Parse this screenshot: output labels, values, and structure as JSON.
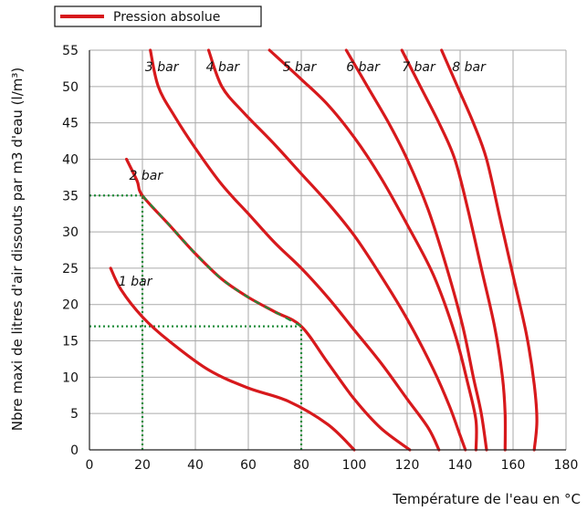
{
  "chart_data": {
    "type": "line",
    "legend": {
      "label": "Pression absolue",
      "placement": "top-left"
    },
    "xlabel": "Température de l'eau en °C",
    "ylabel": "Nbre maxi de litres d'air dissouts par m3 d'eau (l/m³)",
    "xlim": [
      0,
      180
    ],
    "ylim": [
      0,
      55
    ],
    "x_ticks": [
      0,
      20,
      40,
      60,
      80,
      100,
      120,
      140,
      160,
      180
    ],
    "y_ticks": [
      0,
      5,
      10,
      15,
      20,
      25,
      30,
      35,
      40,
      45,
      50,
      55
    ],
    "grid": true,
    "colors": {
      "curve": "#d7191c",
      "highlight": "#1e8c3a",
      "grid": "#aaaaaa",
      "axis": "#222222"
    },
    "series": [
      {
        "name": "1 bar",
        "points": [
          [
            8,
            25
          ],
          [
            12,
            22
          ],
          [
            20,
            18.3
          ],
          [
            30,
            15
          ],
          [
            45,
            11
          ],
          [
            60,
            8.5
          ],
          [
            75,
            6.7
          ],
          [
            90,
            3.5
          ],
          [
            100,
            0
          ]
        ]
      },
      {
        "name": "2 bar",
        "points": [
          [
            14,
            40
          ],
          [
            18,
            37
          ],
          [
            20,
            35
          ],
          [
            30,
            31
          ],
          [
            40,
            27
          ],
          [
            50,
            23.5
          ],
          [
            60,
            21
          ],
          [
            70,
            19
          ],
          [
            80,
            17
          ],
          [
            90,
            12
          ],
          [
            100,
            7
          ],
          [
            110,
            3
          ],
          [
            121,
            0
          ]
        ]
      },
      {
        "name": "3 bar",
        "points": [
          [
            23,
            55
          ],
          [
            26,
            50
          ],
          [
            32,
            46
          ],
          [
            40,
            41.5
          ],
          [
            50,
            36.5
          ],
          [
            60,
            32.5
          ],
          [
            70,
            28.5
          ],
          [
            80,
            25
          ],
          [
            90,
            21
          ],
          [
            100,
            16.5
          ],
          [
            110,
            12
          ],
          [
            120,
            7
          ],
          [
            128,
            3
          ],
          [
            132,
            0
          ]
        ]
      },
      {
        "name": "4 bar",
        "points": [
          [
            45,
            55
          ],
          [
            50,
            50
          ],
          [
            58,
            46.5
          ],
          [
            70,
            42
          ],
          [
            80,
            38
          ],
          [
            90,
            34
          ],
          [
            100,
            29.5
          ],
          [
            110,
            24
          ],
          [
            120,
            18
          ],
          [
            130,
            11
          ],
          [
            136,
            6
          ],
          [
            140,
            2
          ],
          [
            142,
            0
          ]
        ]
      },
      {
        "name": "5 bar",
        "points": [
          [
            68,
            55
          ],
          [
            80,
            51
          ],
          [
            90,
            47.5
          ],
          [
            100,
            43
          ],
          [
            110,
            37.5
          ],
          [
            120,
            31
          ],
          [
            130,
            24
          ],
          [
            138,
            16
          ],
          [
            143,
            9
          ],
          [
            146,
            4
          ],
          [
            146,
            0
          ]
        ]
      },
      {
        "name": "6 bar",
        "points": [
          [
            97,
            55
          ],
          [
            105,
            50
          ],
          [
            113,
            45
          ],
          [
            120,
            40
          ],
          [
            128,
            33
          ],
          [
            135,
            25
          ],
          [
            141,
            17
          ],
          [
            145,
            10
          ],
          [
            148,
            5
          ],
          [
            150,
            0
          ]
        ]
      },
      {
        "name": "7 bar",
        "points": [
          [
            118,
            55
          ],
          [
            125,
            50
          ],
          [
            132,
            45
          ],
          [
            138,
            40
          ],
          [
            143,
            33
          ],
          [
            148,
            25
          ],
          [
            153,
            17
          ],
          [
            156,
            10
          ],
          [
            157,
            5
          ],
          [
            157,
            0
          ]
        ]
      },
      {
        "name": "8 bar",
        "points": [
          [
            133,
            55
          ],
          [
            139,
            50
          ],
          [
            145,
            45
          ],
          [
            150,
            40
          ],
          [
            155,
            32
          ],
          [
            160,
            24
          ],
          [
            165,
            16
          ],
          [
            168,
            9
          ],
          [
            169,
            4
          ],
          [
            168,
            0
          ]
        ]
      }
    ],
    "curve_label_anchors": [
      {
        "text": "1 bar",
        "x": 11,
        "y": 22.6
      },
      {
        "text": "2 bar",
        "x": 15,
        "y": 37.2
      },
      {
        "text": "3 bar",
        "x": 21,
        "y": 52.1
      },
      {
        "text": "4 bar",
        "x": 44,
        "y": 52.1
      },
      {
        "text": "5 bar",
        "x": 73,
        "y": 52.1
      },
      {
        "text": "6 bar",
        "x": 97,
        "y": 52.1
      },
      {
        "text": "7 bar",
        "x": 118,
        "y": 52.1
      },
      {
        "text": "8 bar",
        "x": 137,
        "y": 52.1
      }
    ],
    "annotations": {
      "highlight_segment": {
        "series": "2 bar",
        "x_from": 20,
        "x_to": 80
      },
      "reference_lines": [
        {
          "type": "horizontal",
          "y": 35,
          "x_from": 0,
          "x_to": 20
        },
        {
          "type": "vertical",
          "x": 20,
          "y_from": 0,
          "y_to": 35
        },
        {
          "type": "horizontal",
          "y": 17,
          "x_from": 0,
          "x_to": 80
        },
        {
          "type": "vertical",
          "x": 80,
          "y_from": 0,
          "y_to": 17
        }
      ]
    }
  }
}
